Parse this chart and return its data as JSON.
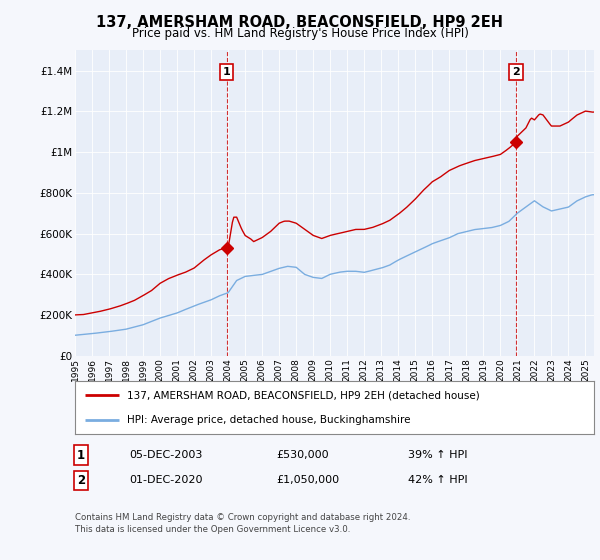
{
  "title": "137, AMERSHAM ROAD, BEACONSFIELD, HP9 2EH",
  "subtitle": "Price paid vs. HM Land Registry's House Price Index (HPI)",
  "background_color": "#f5f7fc",
  "plot_bg_color": "#e8eef8",
  "ylabel_ticks": [
    "£0",
    "£200K",
    "£400K",
    "£600K",
    "£800K",
    "£1M",
    "£1.2M",
    "£1.4M"
  ],
  "ytick_values": [
    0,
    200000,
    400000,
    600000,
    800000,
    1000000,
    1200000,
    1400000
  ],
  "ylim": [
    0,
    1500000
  ],
  "xlim_start": 1995.0,
  "xlim_end": 2025.5,
  "sale1_x": 2003.92,
  "sale1_y": 530000,
  "sale2_x": 2020.92,
  "sale2_y": 1050000,
  "legend_line1": "137, AMERSHAM ROAD, BEACONSFIELD, HP9 2EH (detached house)",
  "legend_line2": "HPI: Average price, detached house, Buckinghamshire",
  "annotation1_num": "1",
  "annotation1_date": "05-DEC-2003",
  "annotation1_price": "£530,000",
  "annotation1_hpi": "39% ↑ HPI",
  "annotation2_num": "2",
  "annotation2_date": "01-DEC-2020",
  "annotation2_price": "£1,050,000",
  "annotation2_hpi": "42% ↑ HPI",
  "footer1": "Contains HM Land Registry data © Crown copyright and database right 2024.",
  "footer2": "This data is licensed under the Open Government Licence v3.0.",
  "red_color": "#cc0000",
  "blue_color": "#7aade0",
  "vline_color": "#cc0000"
}
